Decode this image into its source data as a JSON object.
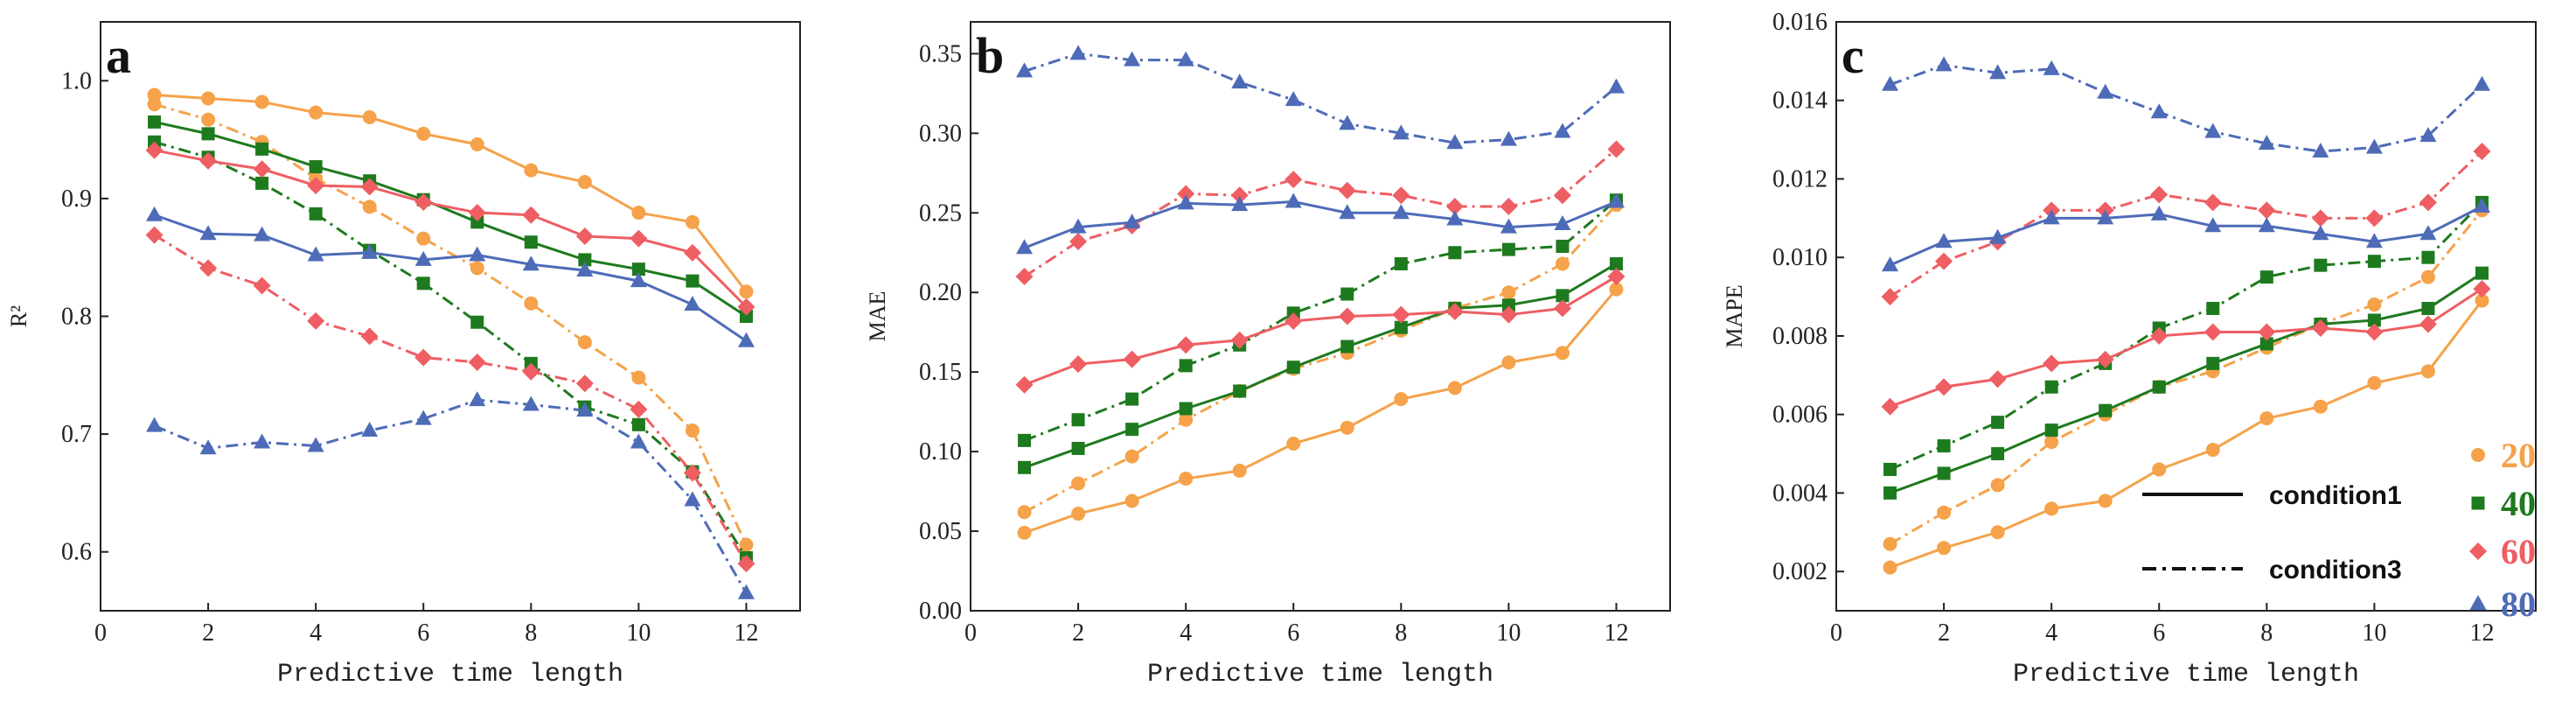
{
  "colors": {
    "20": "#F5A24A",
    "40": "#1E7A1E",
    "60": "#EE5E63",
    "80": "#4E6BB8"
  },
  "chart_data": [
    {
      "type": "line",
      "panel": "a",
      "xlabel": "Predictive time length",
      "ylabel": "R²",
      "xlim": [
        0,
        13
      ],
      "ylim": [
        0.55,
        1.05
      ],
      "xticks": [
        0,
        2,
        4,
        6,
        8,
        10,
        12
      ],
      "xtick_labels": [
        "0",
        "2",
        "4",
        "6",
        "8",
        "10",
        "12"
      ],
      "yticks": [
        0.6,
        0.7,
        0.8,
        0.9,
        1.0
      ],
      "ytick_labels": [
        "0.6",
        "0.7",
        "0.8",
        "0.9",
        "1.0"
      ],
      "x": [
        1,
        2,
        3,
        4,
        5,
        6,
        7,
        8,
        9,
        10,
        11,
        12
      ],
      "series": [
        {
          "name": "20",
          "condition": "condition1",
          "values": [
            0.988,
            0.985,
            0.982,
            0.973,
            0.969,
            0.955,
            0.946,
            0.924,
            0.914,
            0.888,
            0.88,
            0.821
          ]
        },
        {
          "name": "20",
          "condition": "condition3",
          "values": [
            0.98,
            0.967,
            0.948,
            0.917,
            0.893,
            0.866,
            0.841,
            0.811,
            0.778,
            0.748,
            0.703,
            0.606
          ]
        },
        {
          "name": "40",
          "condition": "condition1",
          "values": [
            0.965,
            0.955,
            0.942,
            0.927,
            0.915,
            0.899,
            0.88,
            0.863,
            0.848,
            0.84,
            0.83,
            0.8
          ]
        },
        {
          "name": "40",
          "condition": "condition3",
          "values": [
            0.948,
            0.935,
            0.913,
            0.887,
            0.856,
            0.828,
            0.795,
            0.76,
            0.723,
            0.708,
            0.668,
            0.595
          ]
        },
        {
          "name": "60",
          "condition": "condition1",
          "values": [
            0.941,
            0.932,
            0.925,
            0.911,
            0.91,
            0.897,
            0.888,
            0.886,
            0.868,
            0.866,
            0.854,
            0.808
          ]
        },
        {
          "name": "60",
          "condition": "condition3",
          "values": [
            0.869,
            0.841,
            0.826,
            0.796,
            0.783,
            0.765,
            0.761,
            0.753,
            0.743,
            0.721,
            0.667,
            0.59
          ]
        },
        {
          "name": "80",
          "condition": "condition1",
          "values": [
            0.886,
            0.87,
            0.869,
            0.852,
            0.854,
            0.848,
            0.852,
            0.844,
            0.839,
            0.83,
            0.81,
            0.779
          ]
        },
        {
          "name": "80",
          "condition": "condition3",
          "values": [
            0.707,
            0.688,
            0.693,
            0.69,
            0.703,
            0.713,
            0.729,
            0.725,
            0.72,
            0.693,
            0.644,
            0.565
          ]
        }
      ]
    },
    {
      "type": "line",
      "panel": "b",
      "xlabel": "Predictive time length",
      "ylabel": "MAE",
      "xlim": [
        0,
        13
      ],
      "ylim": [
        0,
        0.37
      ],
      "xticks": [
        0,
        2,
        4,
        6,
        8,
        10,
        12
      ],
      "xtick_labels": [
        "0",
        "2",
        "4",
        "6",
        "8",
        "10",
        "12"
      ],
      "yticks": [
        0,
        0.05,
        0.1,
        0.15,
        0.2,
        0.25,
        0.3,
        0.35
      ],
      "ytick_labels": [
        "0.00",
        "0.05",
        "0.10",
        "0.15",
        "0.20",
        "0.25",
        "0.30",
        "0.35"
      ],
      "x": [
        1,
        2,
        3,
        4,
        5,
        6,
        7,
        8,
        9,
        10,
        11,
        12
      ],
      "series": [
        {
          "name": "20",
          "condition": "condition1",
          "values": [
            0.049,
            0.061,
            0.069,
            0.083,
            0.088,
            0.105,
            0.115,
            0.133,
            0.14,
            0.156,
            0.162,
            0.202
          ]
        },
        {
          "name": "20",
          "condition": "condition3",
          "values": [
            0.062,
            0.08,
            0.097,
            0.12,
            0.138,
            0.152,
            0.162,
            0.176,
            0.19,
            0.2,
            0.218,
            0.255
          ]
        },
        {
          "name": "40",
          "condition": "condition1",
          "values": [
            0.09,
            0.102,
            0.114,
            0.127,
            0.138,
            0.153,
            0.166,
            0.178,
            0.19,
            0.192,
            0.198,
            0.218
          ]
        },
        {
          "name": "40",
          "condition": "condition3",
          "values": [
            0.107,
            0.12,
            0.133,
            0.154,
            0.167,
            0.187,
            0.199,
            0.218,
            0.225,
            0.227,
            0.229,
            0.258
          ]
        },
        {
          "name": "60",
          "condition": "condition1",
          "values": [
            0.142,
            0.155,
            0.158,
            0.167,
            0.17,
            0.182,
            0.185,
            0.186,
            0.188,
            0.186,
            0.19,
            0.21
          ]
        },
        {
          "name": "60",
          "condition": "condition3",
          "values": [
            0.21,
            0.232,
            0.242,
            0.262,
            0.261,
            0.271,
            0.264,
            0.261,
            0.254,
            0.254,
            0.261,
            0.29
          ]
        },
        {
          "name": "80",
          "condition": "condition1",
          "values": [
            0.228,
            0.241,
            0.244,
            0.256,
            0.255,
            0.257,
            0.25,
            0.25,
            0.246,
            0.241,
            0.243,
            0.257
          ]
        },
        {
          "name": "80",
          "condition": "condition3",
          "values": [
            0.339,
            0.35,
            0.346,
            0.346,
            0.332,
            0.321,
            0.306,
            0.3,
            0.294,
            0.296,
            0.301,
            0.329
          ]
        }
      ]
    },
    {
      "type": "line",
      "panel": "c",
      "xlabel": "Predictive time length",
      "ylabel": "MAPE",
      "xlim": [
        0,
        13
      ],
      "ylim": [
        0.001,
        0.016
      ],
      "xticks": [
        0,
        2,
        4,
        6,
        8,
        10,
        12
      ],
      "xtick_labels": [
        "0",
        "2",
        "4",
        "6",
        "8",
        "10",
        "12"
      ],
      "yticks": [
        0.002,
        0.004,
        0.006,
        0.008,
        0.01,
        0.012,
        0.014,
        0.016
      ],
      "ytick_labels": [
        "0.002",
        "0.004",
        "0.006",
        "0.008",
        "0.010",
        "0.012",
        "0.014",
        "0.016"
      ],
      "x": [
        1,
        2,
        3,
        4,
        5,
        6,
        7,
        8,
        9,
        10,
        11,
        12
      ],
      "series": [
        {
          "name": "20",
          "condition": "condition1",
          "values": [
            0.0021,
            0.0026,
            0.003,
            0.0036,
            0.0038,
            0.0046,
            0.0051,
            0.0059,
            0.0062,
            0.0068,
            0.0071,
            0.0089
          ]
        },
        {
          "name": "20",
          "condition": "condition3",
          "values": [
            0.0027,
            0.0035,
            0.0042,
            0.0053,
            0.006,
            0.0067,
            0.0071,
            0.0077,
            0.0083,
            0.0088,
            0.0095,
            0.0112
          ]
        },
        {
          "name": "40",
          "condition": "condition1",
          "values": [
            0.004,
            0.0045,
            0.005,
            0.0056,
            0.0061,
            0.0067,
            0.0073,
            0.0078,
            0.0083,
            0.0084,
            0.0087,
            0.0096
          ]
        },
        {
          "name": "40",
          "condition": "condition3",
          "values": [
            0.0046,
            0.0052,
            0.0058,
            0.0067,
            0.0073,
            0.0082,
            0.0087,
            0.0095,
            0.0098,
            0.0099,
            0.01,
            0.0114
          ]
        },
        {
          "name": "60",
          "condition": "condition1",
          "values": [
            0.0062,
            0.0067,
            0.0069,
            0.0073,
            0.0074,
            0.008,
            0.0081,
            0.0081,
            0.0082,
            0.0081,
            0.0083,
            0.0092
          ]
        },
        {
          "name": "60",
          "condition": "condition3",
          "values": [
            0.009,
            0.0099,
            0.0104,
            0.0112,
            0.0112,
            0.0116,
            0.0114,
            0.0112,
            0.011,
            0.011,
            0.0114,
            0.0127
          ]
        },
        {
          "name": "80",
          "condition": "condition1",
          "values": [
            0.0098,
            0.0104,
            0.0105,
            0.011,
            0.011,
            0.0111,
            0.0108,
            0.0108,
            0.0106,
            0.0104,
            0.0106,
            0.0113
          ]
        },
        {
          "name": "80",
          "condition": "condition3",
          "values": [
            0.0144,
            0.0149,
            0.0147,
            0.0148,
            0.0142,
            0.0137,
            0.0132,
            0.0129,
            0.0127,
            0.0128,
            0.0131,
            0.0144
          ]
        }
      ]
    }
  ],
  "legend": {
    "entries": [
      {
        "label": "20",
        "marker": "circle"
      },
      {
        "label": "40",
        "marker": "square"
      },
      {
        "label": "60",
        "marker": "diamond"
      },
      {
        "label": "80",
        "marker": "triangle"
      }
    ],
    "conditions": [
      {
        "label": "condition1",
        "style": "solid"
      },
      {
        "label": "condition3",
        "style": "dashdot"
      }
    ]
  }
}
